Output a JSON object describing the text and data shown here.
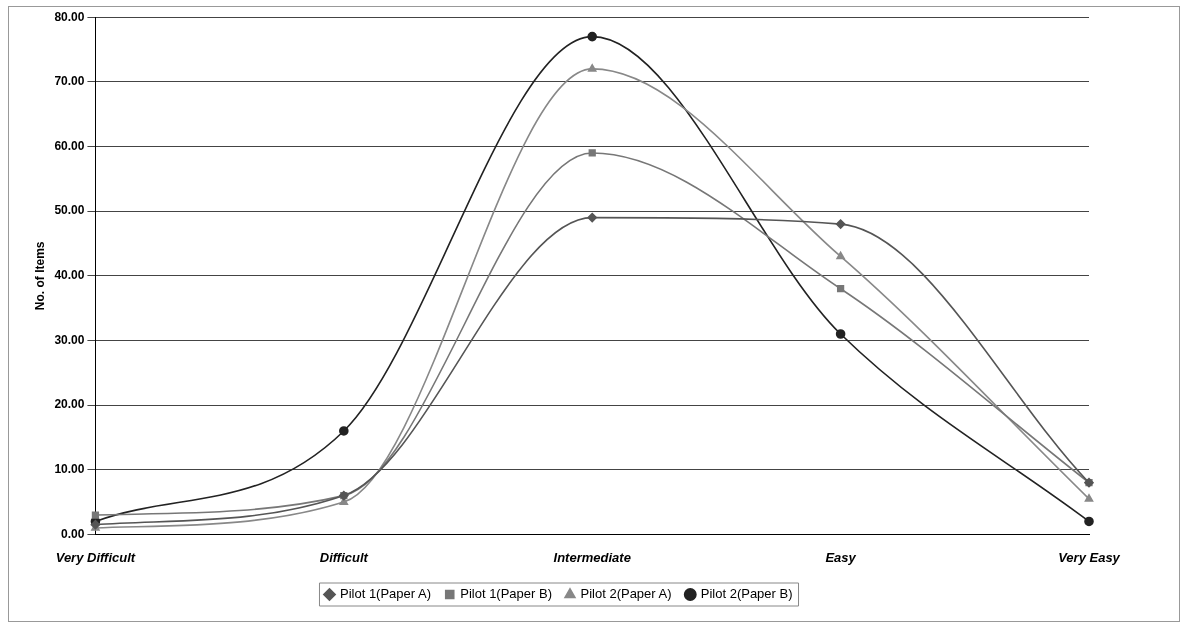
{
  "chart_data": {
    "type": "line",
    "ylabel": "No. of Items",
    "categories": [
      "Very Difficult",
      "Difficult",
      "Intermediate",
      "Easy",
      "Very Easy"
    ],
    "series": [
      {
        "name": "Pilot 1(Paper A)",
        "color": "#555555",
        "marker": "diamond",
        "values": [
          1.5,
          6,
          49,
          48,
          8
        ]
      },
      {
        "name": "Pilot 1(Paper B)",
        "color": "#777777",
        "marker": "square",
        "values": [
          3,
          6,
          59,
          38,
          8
        ]
      },
      {
        "name": "Pilot 2(Paper A)",
        "color": "#888888",
        "marker": "triangle",
        "values": [
          1,
          5,
          72,
          43,
          5.5
        ]
      },
      {
        "name": "Pilot 2(Paper B)",
        "color": "#222222",
        "marker": "circle",
        "values": [
          2,
          16,
          77,
          31,
          2
        ]
      }
    ],
    "ylim": [
      0,
      80
    ],
    "yticks": [
      {
        "value": 0,
        "label": "0.00"
      },
      {
        "value": 10,
        "label": "10.00"
      },
      {
        "value": 20,
        "label": "20.00"
      },
      {
        "value": 30,
        "label": "30.00"
      },
      {
        "value": 40,
        "label": "40.00"
      },
      {
        "value": 50,
        "label": "50.00"
      },
      {
        "value": 60,
        "label": "60.00"
      },
      {
        "value": 70,
        "label": "70.00"
      },
      {
        "value": 80,
        "label": "80.00"
      }
    ],
    "grid": "y",
    "legend": "bottom"
  }
}
